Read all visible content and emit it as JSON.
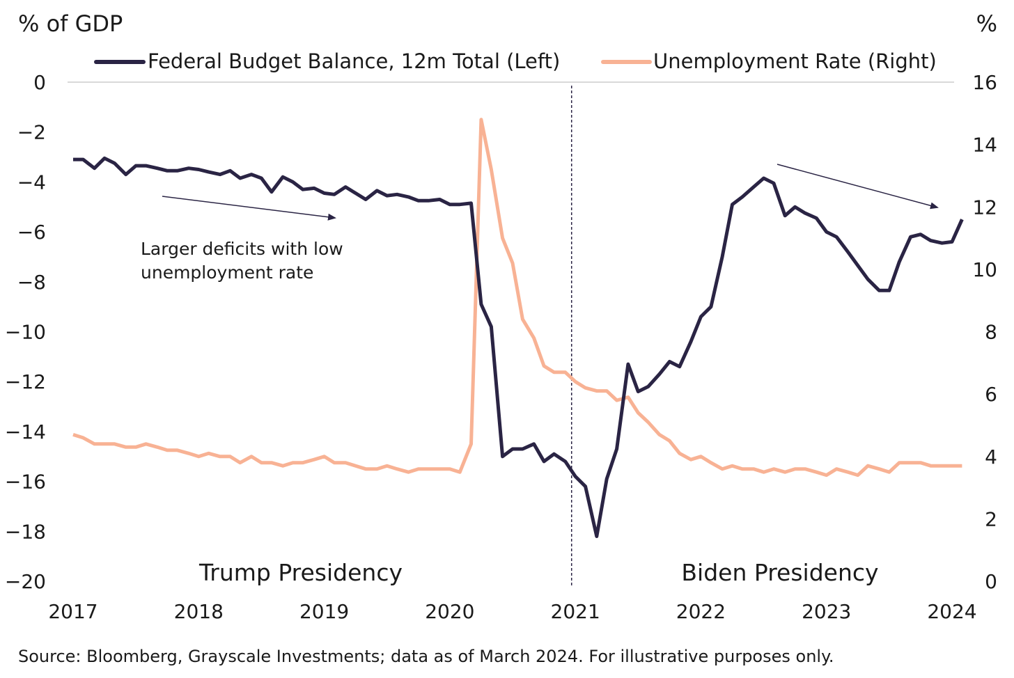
{
  "chart_data": {
    "type": "line",
    "left_axis_label": "% of GDP",
    "right_axis_label": "%",
    "left_ylim": [
      -20,
      0
    ],
    "left_ticks": [
      "0",
      "-2",
      "-4",
      "-6",
      "-8",
      "-10",
      "-12",
      "-14",
      "-16",
      "-18",
      "-20"
    ],
    "right_ylim": [
      0,
      16
    ],
    "right_ticks": [
      "16",
      "14",
      "12",
      "10",
      "8",
      "6",
      "4",
      "2",
      "0"
    ],
    "xlim": [
      2017.0,
      2024.0
    ],
    "x_ticks": [
      "2017",
      "2018",
      "2019",
      "2020",
      "2021",
      "2022",
      "2023",
      "2024"
    ],
    "grid": "zero line only",
    "divider_x": 2020.97,
    "series": [
      {
        "name": "Federal Budget Balance, 12m Total (Left)",
        "axis": "left",
        "color": "#2a2444",
        "x": [
          2017.0,
          2017.08,
          2017.17,
          2017.25,
          2017.33,
          2017.42,
          2017.5,
          2017.58,
          2017.67,
          2017.75,
          2017.83,
          2017.92,
          2018.0,
          2018.08,
          2018.17,
          2018.25,
          2018.33,
          2018.42,
          2018.5,
          2018.58,
          2018.67,
          2018.75,
          2018.83,
          2018.92,
          2019.0,
          2019.08,
          2019.17,
          2019.25,
          2019.33,
          2019.42,
          2019.5,
          2019.58,
          2019.67,
          2019.75,
          2019.83,
          2019.92,
          2020.0,
          2020.08,
          2020.17,
          2020.25,
          2020.33,
          2020.42,
          2020.5,
          2020.58,
          2020.67,
          2020.75,
          2020.83,
          2020.92,
          2021.0,
          2021.08,
          2021.17,
          2021.25,
          2021.33,
          2021.42,
          2021.5,
          2021.58,
          2021.67,
          2021.75,
          2021.83,
          2021.92,
          2022.0,
          2022.08,
          2022.17,
          2022.25,
          2022.33,
          2022.42,
          2022.5,
          2022.58,
          2022.67,
          2022.75,
          2022.83,
          2022.92,
          2023.0,
          2023.08,
          2023.17,
          2023.25,
          2023.33,
          2023.42,
          2023.5,
          2023.58,
          2023.67,
          2023.75,
          2023.83,
          2023.92,
          2024.0,
          2024.08
        ],
        "values": [
          -3.1,
          -3.1,
          -3.45,
          -3.05,
          -3.25,
          -3.7,
          -3.35,
          -3.35,
          -3.45,
          -3.55,
          -3.55,
          -3.45,
          -3.5,
          -3.6,
          -3.7,
          -3.55,
          -3.85,
          -3.7,
          -3.85,
          -4.4,
          -3.8,
          -4.0,
          -4.3,
          -4.25,
          -4.45,
          -4.5,
          -4.2,
          -4.45,
          -4.7,
          -4.35,
          -4.55,
          -4.5,
          -4.6,
          -4.75,
          -4.75,
          -4.7,
          -4.9,
          -4.9,
          -4.85,
          -8.9,
          -9.8,
          -15.0,
          -14.7,
          -14.7,
          -14.5,
          -15.2,
          -14.9,
          -15.2,
          -15.8,
          -16.2,
          -18.2,
          -15.9,
          -14.7,
          -11.3,
          -12.4,
          -12.2,
          -11.7,
          -11.2,
          -11.4,
          -10.4,
          -9.4,
          -9.0,
          -7.0,
          -4.9,
          -4.6,
          -4.2,
          -3.85,
          -4.05,
          -5.35,
          -5.0,
          -5.25,
          -5.45,
          -6.0,
          -6.2,
          -6.8,
          -7.35,
          -7.9,
          -8.35,
          -8.35,
          -7.2,
          -6.2,
          -6.1,
          -6.35,
          -6.45,
          -6.4,
          -5.5
        ]
      },
      {
        "name": "Unemployment Rate (Right)",
        "axis": "right",
        "color": "#f8b294",
        "x": [
          2017.0,
          2017.08,
          2017.17,
          2017.25,
          2017.33,
          2017.42,
          2017.5,
          2017.58,
          2017.67,
          2017.75,
          2017.83,
          2017.92,
          2018.0,
          2018.08,
          2018.17,
          2018.25,
          2018.33,
          2018.42,
          2018.5,
          2018.58,
          2018.67,
          2018.75,
          2018.83,
          2018.92,
          2019.0,
          2019.08,
          2019.17,
          2019.25,
          2019.33,
          2019.42,
          2019.5,
          2019.58,
          2019.67,
          2019.75,
          2019.83,
          2019.92,
          2020.0,
          2020.08,
          2020.17,
          2020.25,
          2020.33,
          2020.42,
          2020.5,
          2020.58,
          2020.67,
          2020.75,
          2020.83,
          2020.92,
          2021.0,
          2021.08,
          2021.17,
          2021.25,
          2021.33,
          2021.42,
          2021.5,
          2021.58,
          2021.67,
          2021.75,
          2021.83,
          2021.92,
          2022.0,
          2022.08,
          2022.17,
          2022.25,
          2022.33,
          2022.42,
          2022.5,
          2022.58,
          2022.67,
          2022.75,
          2022.83,
          2022.92,
          2023.0,
          2023.08,
          2023.17,
          2023.25,
          2023.33,
          2023.42,
          2023.5,
          2023.58,
          2023.67,
          2023.75,
          2023.83,
          2023.92,
          2024.0,
          2024.08
        ],
        "values": [
          4.7,
          4.6,
          4.4,
          4.4,
          4.4,
          4.3,
          4.3,
          4.4,
          4.3,
          4.2,
          4.2,
          4.1,
          4.0,
          4.1,
          4.0,
          4.0,
          3.8,
          4.0,
          3.8,
          3.8,
          3.7,
          3.8,
          3.8,
          3.9,
          4.0,
          3.8,
          3.8,
          3.7,
          3.6,
          3.6,
          3.7,
          3.6,
          3.5,
          3.6,
          3.6,
          3.6,
          3.6,
          3.5,
          4.4,
          14.8,
          13.2,
          11.0,
          10.2,
          8.4,
          7.8,
          6.9,
          6.7,
          6.7,
          6.4,
          6.2,
          6.1,
          6.1,
          5.8,
          5.9,
          5.4,
          5.1,
          4.7,
          4.5,
          4.1,
          3.9,
          4.0,
          3.8,
          3.6,
          3.7,
          3.6,
          3.6,
          3.5,
          3.6,
          3.5,
          3.6,
          3.6,
          3.5,
          3.4,
          3.6,
          3.5,
          3.4,
          3.7,
          3.6,
          3.5,
          3.8,
          3.8,
          3.8,
          3.7,
          3.7,
          3.7,
          3.7
        ]
      }
    ],
    "annotations": {
      "left_note": "Larger deficits with low unemployment rate",
      "left_note_lines": [
        "Larger deficits with low",
        "unemployment rate"
      ],
      "left_era": "Trump Presidency",
      "right_era": "Biden Presidency"
    }
  },
  "source_note": "Source: Bloomberg, Grayscale Investments; data as of March 2024. For illustrative purposes only."
}
